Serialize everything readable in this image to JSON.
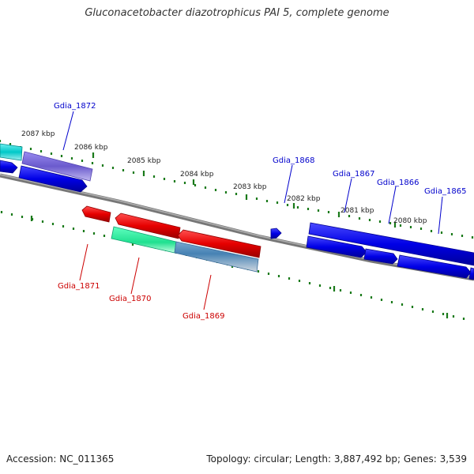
{
  "title": "Gluconacetobacter diazotrophicus PAI 5, complete genome",
  "accession_text": "Accession: NC_011365",
  "topology_text": "Topology: circular; Length: 3,887,492 bp; Genes: 3,539",
  "colors": {
    "backbone": "#8a8a8a",
    "tick": "#1a7a1a",
    "label_forward": "#0000cc",
    "label_reverse": "#cc0000"
  },
  "kbp_labels": [
    "2087 kbp",
    "2086 kbp",
    "2085 kbp",
    "2084 kbp",
    "2083 kbp",
    "2082 kbp",
    "2081 kbp",
    "2080 kbp"
  ],
  "gene_labels": {
    "forward": [
      "Gdia_1872",
      "Gdia_1868",
      "Gdia_1867",
      "Gdia_1866",
      "Gdia_1865"
    ],
    "reverse": [
      "Gdia_1871",
      "Gdia_1870",
      "Gdia_1869"
    ]
  }
}
